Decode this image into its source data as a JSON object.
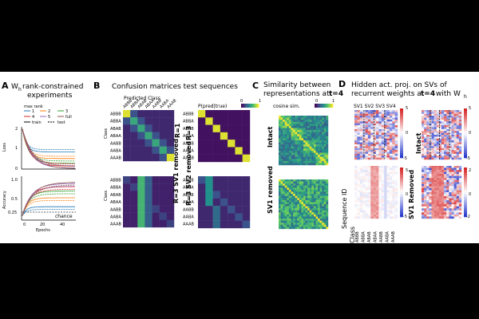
{
  "panel_a": {
    "letter": "A",
    "title_line1": "W",
    "title_sub": "h",
    "title_rest": " rank-constrained",
    "title_line2": "experiments",
    "legend_title": "max rank",
    "legend": [
      "1",
      "2",
      "3",
      "4",
      "5",
      "full",
      "train",
      "test"
    ],
    "loss_label": "Loss",
    "loss_ticks": [
      "2",
      "1",
      "0"
    ],
    "acc_label": "Accuracy",
    "acc_ticks": [
      "1.0",
      "0.5",
      "0.25"
    ],
    "chance_label": "chance",
    "x_ticks": [
      "0",
      "20",
      "40"
    ],
    "x_label": "Epochs"
  },
  "panel_b": {
    "letter": "B",
    "title": "Confusion matrices test sequences",
    "predicted_label": "Predicted Class",
    "col_labels": [
      "ABBB",
      "ABBA",
      "ABAB",
      "ABAA",
      "AABB",
      "AABA",
      "AAAB"
    ],
    "row_labels": [
      "ABBB",
      "ABBA",
      "ABAB",
      "ABAA",
      "AABB",
      "AABA",
      "AAAB"
    ],
    "class_label": "Class",
    "row_tags": [
      "R=1",
      "R=3",
      "R=3 SV1 removed",
      "R=3 SV2 removed"
    ],
    "cbar_title": "P(pred|true)",
    "cbar_min": "0",
    "cbar_max": "1"
  },
  "panel_c": {
    "letter": "C",
    "title_line1": "Similarity between",
    "title_line2": "representations at ",
    "title_bold": "t=4",
    "cbar_title": "cosine sim.",
    "cbar_min": "0",
    "cbar_max": "1",
    "row_tags": [
      "Intact",
      "SV1 removed"
    ]
  },
  "panel_d": {
    "letter": "D",
    "title_line1": "Hidden act. proj. on SVs of",
    "title_line2a": "recurrent weights at ",
    "title_bold": "t=4",
    "title_line2b": " with W",
    "title_sub": "h",
    "sv_labels": "SV1 SV2 SV3 SV4",
    "cbar_a": [
      "5",
      "0",
      "-5"
    ],
    "cbar_b": [
      "5",
      "0",
      "-5"
    ],
    "cbar_c": [
      "5",
      "0",
      "-5"
    ],
    "cbar_d": [
      "2",
      "0",
      "-2"
    ],
    "tag_intact": "Intact",
    "tag_removed": "SV1 Removed",
    "seq_label": "Sequence ID",
    "class_label": "Class",
    "class_rows": [
      "ABBB",
      "ABBA",
      "ABAB",
      "ABAA",
      "AABB",
      "AABA",
      "AAAB"
    ]
  },
  "colors": {
    "viridis_dark": "#440154",
    "viridis_mid": "#21918c",
    "viridis_bright": "#fde725",
    "blue": "#2a3bcc",
    "red": "#d62728"
  }
}
